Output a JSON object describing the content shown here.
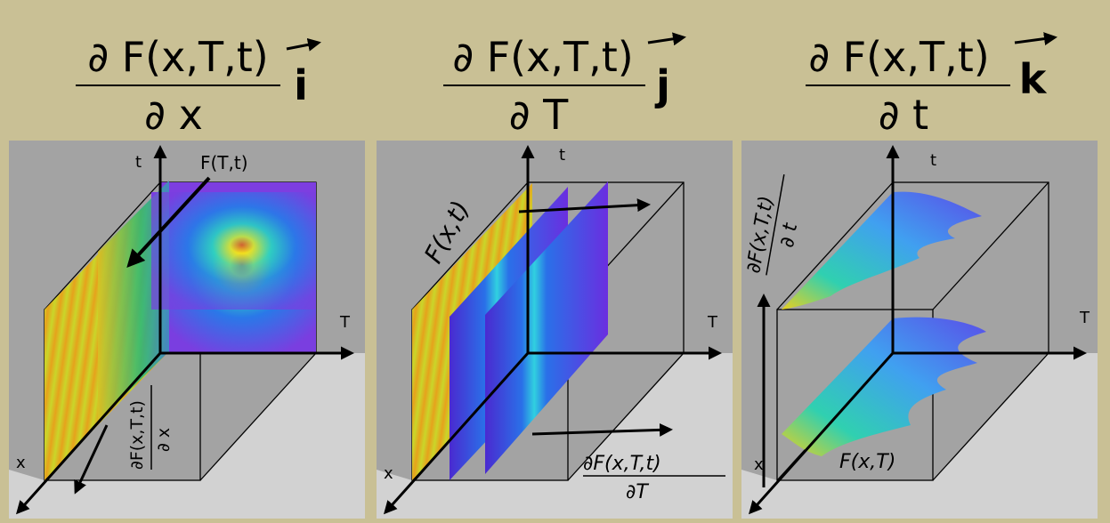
{
  "panels": [
    {
      "numerator": "∂ F(x,T,t)",
      "denominator": "∂ x",
      "vector": "i",
      "axes": {
        "t": "t",
        "T": "T",
        "x": "x"
      },
      "surface_label": "F(T,t)",
      "derivative": {
        "numerator": "∂F(x,T,t)",
        "denominator": "∂ x"
      }
    },
    {
      "numerator": "∂ F(x,T,t)",
      "denominator": "∂ T",
      "vector": "j",
      "axes": {
        "t": "t",
        "T": "T",
        "x": "x"
      },
      "surface_label": "F(x,t)",
      "derivative": {
        "numerator": "∂F(x,T,t)",
        "denominator": "∂T"
      }
    },
    {
      "numerator": "∂ F(x,T,t)",
      "denominator": "∂ t",
      "vector": "k",
      "axes": {
        "t": "t",
        "T": "T",
        "x": "x"
      },
      "surface_label": "F(x,T)",
      "derivative": {
        "numerator": "∂F(x,T,t)",
        "denominator": "∂ t"
      }
    }
  ]
}
